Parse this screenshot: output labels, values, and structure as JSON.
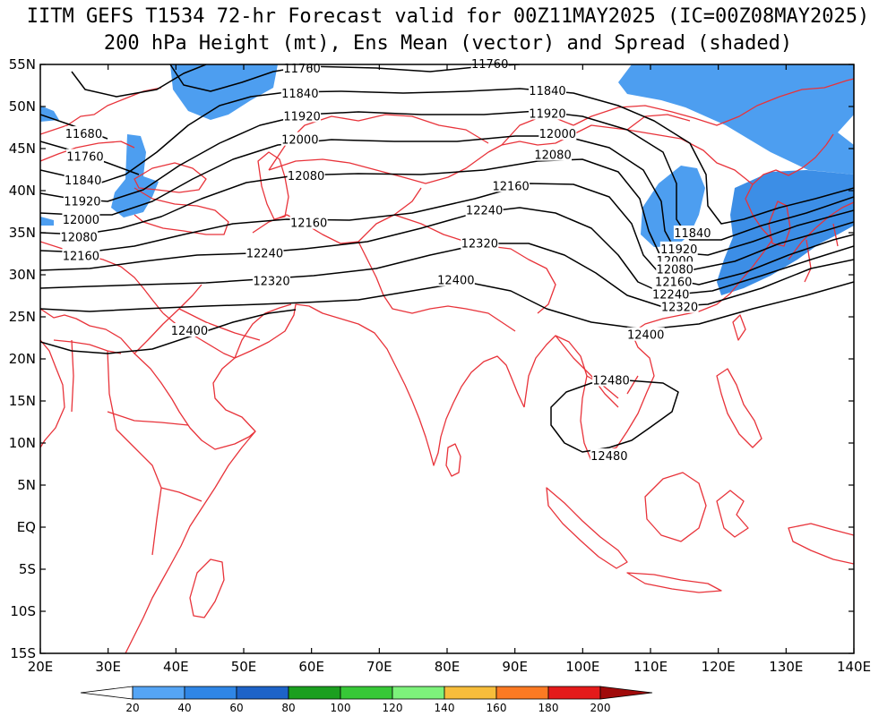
{
  "titles": {
    "line1": "IITM GEFS T1534 72-hr Forecast valid for 00Z11MAY2025 (IC=00Z08MAY2025)",
    "line2": "200 hPa Height (mt), Ens Mean (vector) and Spread (shaded)"
  },
  "map": {
    "lon_range": [
      20,
      140
    ],
    "lat_range": [
      -15,
      55
    ],
    "lon_ticks": [
      "20E",
      "30E",
      "40E",
      "50E",
      "60E",
      "70E",
      "80E",
      "90E",
      "100E",
      "110E",
      "120E",
      "130E",
      "140E"
    ],
    "lat_ticks": [
      "55N",
      "50N",
      "45N",
      "40N",
      "35N",
      "30N",
      "25N",
      "20N",
      "15N",
      "10N",
      "5N",
      "EQ",
      "5S",
      "10S",
      "15S"
    ],
    "coast_color": "#e8333a",
    "contour_color": "#000000"
  },
  "contours": [
    {
      "label": "11680",
      "lon": 26.4,
      "lat": 46.8
    },
    {
      "label": "11760",
      "lon": 26.6,
      "lat": 44.1
    },
    {
      "label": "11840",
      "lon": 26.3,
      "lat": 41.3
    },
    {
      "label": "11920",
      "lon": 26.2,
      "lat": 38.8
    },
    {
      "label": "12000",
      "lon": 26.0,
      "lat": 36.6
    },
    {
      "label": "12080",
      "lon": 25.7,
      "lat": 34.5
    },
    {
      "label": "12160",
      "lon": 26.0,
      "lat": 32.3
    },
    {
      "label": "11760",
      "lon": 58.6,
      "lat": 54.6
    },
    {
      "label": "11840",
      "lon": 58.3,
      "lat": 51.6
    },
    {
      "label": "11920",
      "lon": 58.6,
      "lat": 48.9
    },
    {
      "label": "12000",
      "lon": 58.3,
      "lat": 46.1
    },
    {
      "label": "12080",
      "lon": 59.2,
      "lat": 41.8
    },
    {
      "label": "12160",
      "lon": 59.6,
      "lat": 36.2
    },
    {
      "label": "12240",
      "lon": 53.1,
      "lat": 32.6
    },
    {
      "label": "12320",
      "lon": 54.1,
      "lat": 29.3
    },
    {
      "label": "12400",
      "lon": 42.0,
      "lat": 23.4
    },
    {
      "label": "11760",
      "lon": 86.3,
      "lat": 55.1
    },
    {
      "label": "11840",
      "lon": 94.8,
      "lat": 51.9
    },
    {
      "label": "11920",
      "lon": 94.8,
      "lat": 49.2
    },
    {
      "label": "12000",
      "lon": 96.3,
      "lat": 46.8
    },
    {
      "label": "12080",
      "lon": 95.6,
      "lat": 44.3
    },
    {
      "label": "12160",
      "lon": 89.4,
      "lat": 40.6
    },
    {
      "label": "12240",
      "lon": 85.5,
      "lat": 37.7
    },
    {
      "label": "12320",
      "lon": 84.8,
      "lat": 33.8
    },
    {
      "label": "12400",
      "lon": 81.3,
      "lat": 29.4
    },
    {
      "label": "12480",
      "lon": 104.2,
      "lat": 17.5
    },
    {
      "label": "12480",
      "lon": 103.9,
      "lat": 8.5
    },
    {
      "label": "12400",
      "lon": 109.3,
      "lat": 22.9
    },
    {
      "label": "11840",
      "lon": 116.2,
      "lat": 35.0
    },
    {
      "label": "11920",
      "lon": 114.2,
      "lat": 33.1
    },
    {
      "label": "12000",
      "lon": 113.6,
      "lat": 31.7
    },
    {
      "label": "12080",
      "lon": 113.6,
      "lat": 30.7
    },
    {
      "label": "12160",
      "lon": 113.4,
      "lat": 29.2
    },
    {
      "label": "12240",
      "lon": 113.0,
      "lat": 27.7
    },
    {
      "label": "12320",
      "lon": 114.3,
      "lat": 26.2
    }
  ],
  "colorbar": {
    "labels": [
      "20",
      "40",
      "60",
      "80",
      "100",
      "120",
      "140",
      "160",
      "180",
      "200"
    ],
    "colors": [
      "#ffffff",
      "#55a5f5",
      "#2f86e6",
      "#1d63c8",
      "#1b9f1f",
      "#37c837",
      "#7df27b",
      "#f7bd3b",
      "#fb7a23",
      "#e41b1b",
      "#a00a0a"
    ]
  }
}
